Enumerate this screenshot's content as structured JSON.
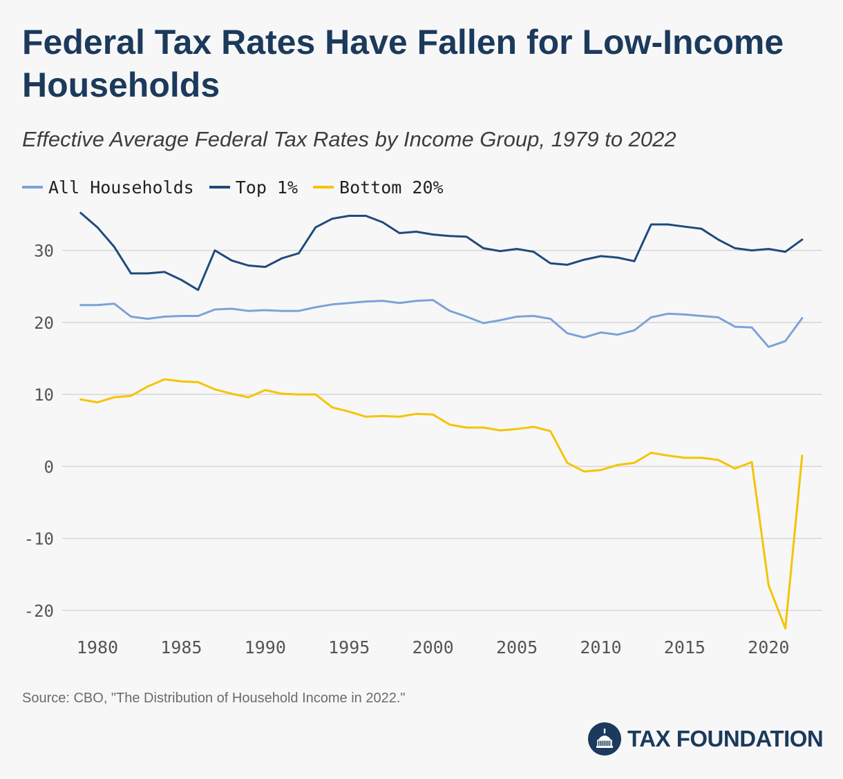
{
  "title": "Federal Tax Rates Have Fallen for Low-Income Households",
  "subtitle": "Effective Average Federal Tax Rates by Income Group, 1979 to 2022",
  "source": "Source: CBO, \"The Distribution of Household Income in 2022.\"",
  "logo": {
    "text": "TAX FOUNDATION",
    "icon": "capitol-dome-icon"
  },
  "colors": {
    "all": "#7ba3d8",
    "top1": "#1f4a7c",
    "bottom20": "#f5c400",
    "grid": "#d6d6d6",
    "tick": "#555555"
  },
  "chart_data": {
    "type": "line",
    "title": "Federal Tax Rates Have Fallen for Low-Income Households",
    "subtitle": "Effective Average Federal Tax Rates by Income Group, 1979 to 2022",
    "xlabel": "",
    "ylabel": "",
    "xlim": [
      1979,
      2022
    ],
    "ylim": [
      -22.5,
      36
    ],
    "grid": "horizontal",
    "legend": "top-left",
    "x_ticks": [
      1980,
      1985,
      1990,
      1995,
      2000,
      2005,
      2010,
      2015,
      2020
    ],
    "y_ticks": [
      30,
      20,
      10,
      0,
      -10,
      -20
    ],
    "x": [
      1979,
      1980,
      1981,
      1982,
      1983,
      1984,
      1985,
      1986,
      1987,
      1988,
      1989,
      1990,
      1991,
      1992,
      1993,
      1994,
      1995,
      1996,
      1997,
      1998,
      1999,
      2000,
      2001,
      2002,
      2003,
      2004,
      2005,
      2006,
      2007,
      2008,
      2009,
      2010,
      2011,
      2012,
      2013,
      2014,
      2015,
      2016,
      2017,
      2018,
      2019,
      2020,
      2021,
      2022
    ],
    "series": [
      {
        "name": "All Households",
        "color": "#7ba3d8",
        "values": [
          22.4,
          22.4,
          22.6,
          20.8,
          20.5,
          20.8,
          20.9,
          20.9,
          21.8,
          21.9,
          21.6,
          21.7,
          21.6,
          21.6,
          22.1,
          22.5,
          22.7,
          22.9,
          23.0,
          22.7,
          23.0,
          23.1,
          21.6,
          20.8,
          19.9,
          20.3,
          20.8,
          20.9,
          20.5,
          18.5,
          17.9,
          18.6,
          18.3,
          18.9,
          20.7,
          21.2,
          21.1,
          20.9,
          20.7,
          19.4,
          19.3,
          16.6,
          17.4,
          20.6
        ]
      },
      {
        "name": "Top 1%",
        "color": "#1f4a7c",
        "values": [
          35.2,
          33.2,
          30.5,
          26.8,
          26.8,
          27.0,
          25.9,
          24.5,
          30.0,
          28.6,
          27.9,
          27.7,
          28.9,
          29.6,
          33.2,
          34.4,
          34.8,
          34.8,
          33.9,
          32.4,
          32.6,
          32.2,
          32.0,
          31.9,
          30.3,
          29.9,
          30.2,
          29.8,
          28.2,
          28.0,
          28.7,
          29.2,
          29.0,
          28.5,
          33.6,
          33.6,
          33.3,
          33.0,
          31.5,
          30.3,
          30.0,
          30.2,
          29.8,
          31.5
        ]
      },
      {
        "name": "Bottom 20%",
        "color": "#f5c400",
        "values": [
          9.3,
          8.9,
          9.6,
          9.8,
          11.1,
          12.1,
          11.8,
          11.7,
          10.7,
          10.1,
          9.6,
          10.6,
          10.1,
          10.0,
          10.0,
          8.2,
          7.6,
          6.9,
          7.0,
          6.9,
          7.3,
          7.2,
          5.8,
          5.4,
          5.4,
          5.0,
          5.2,
          5.5,
          4.9,
          0.5,
          -0.7,
          -0.5,
          0.2,
          0.5,
          1.9,
          1.5,
          1.2,
          1.2,
          0.9,
          -0.3,
          0.6,
          -16.5,
          -22.5,
          1.5
        ]
      }
    ]
  }
}
